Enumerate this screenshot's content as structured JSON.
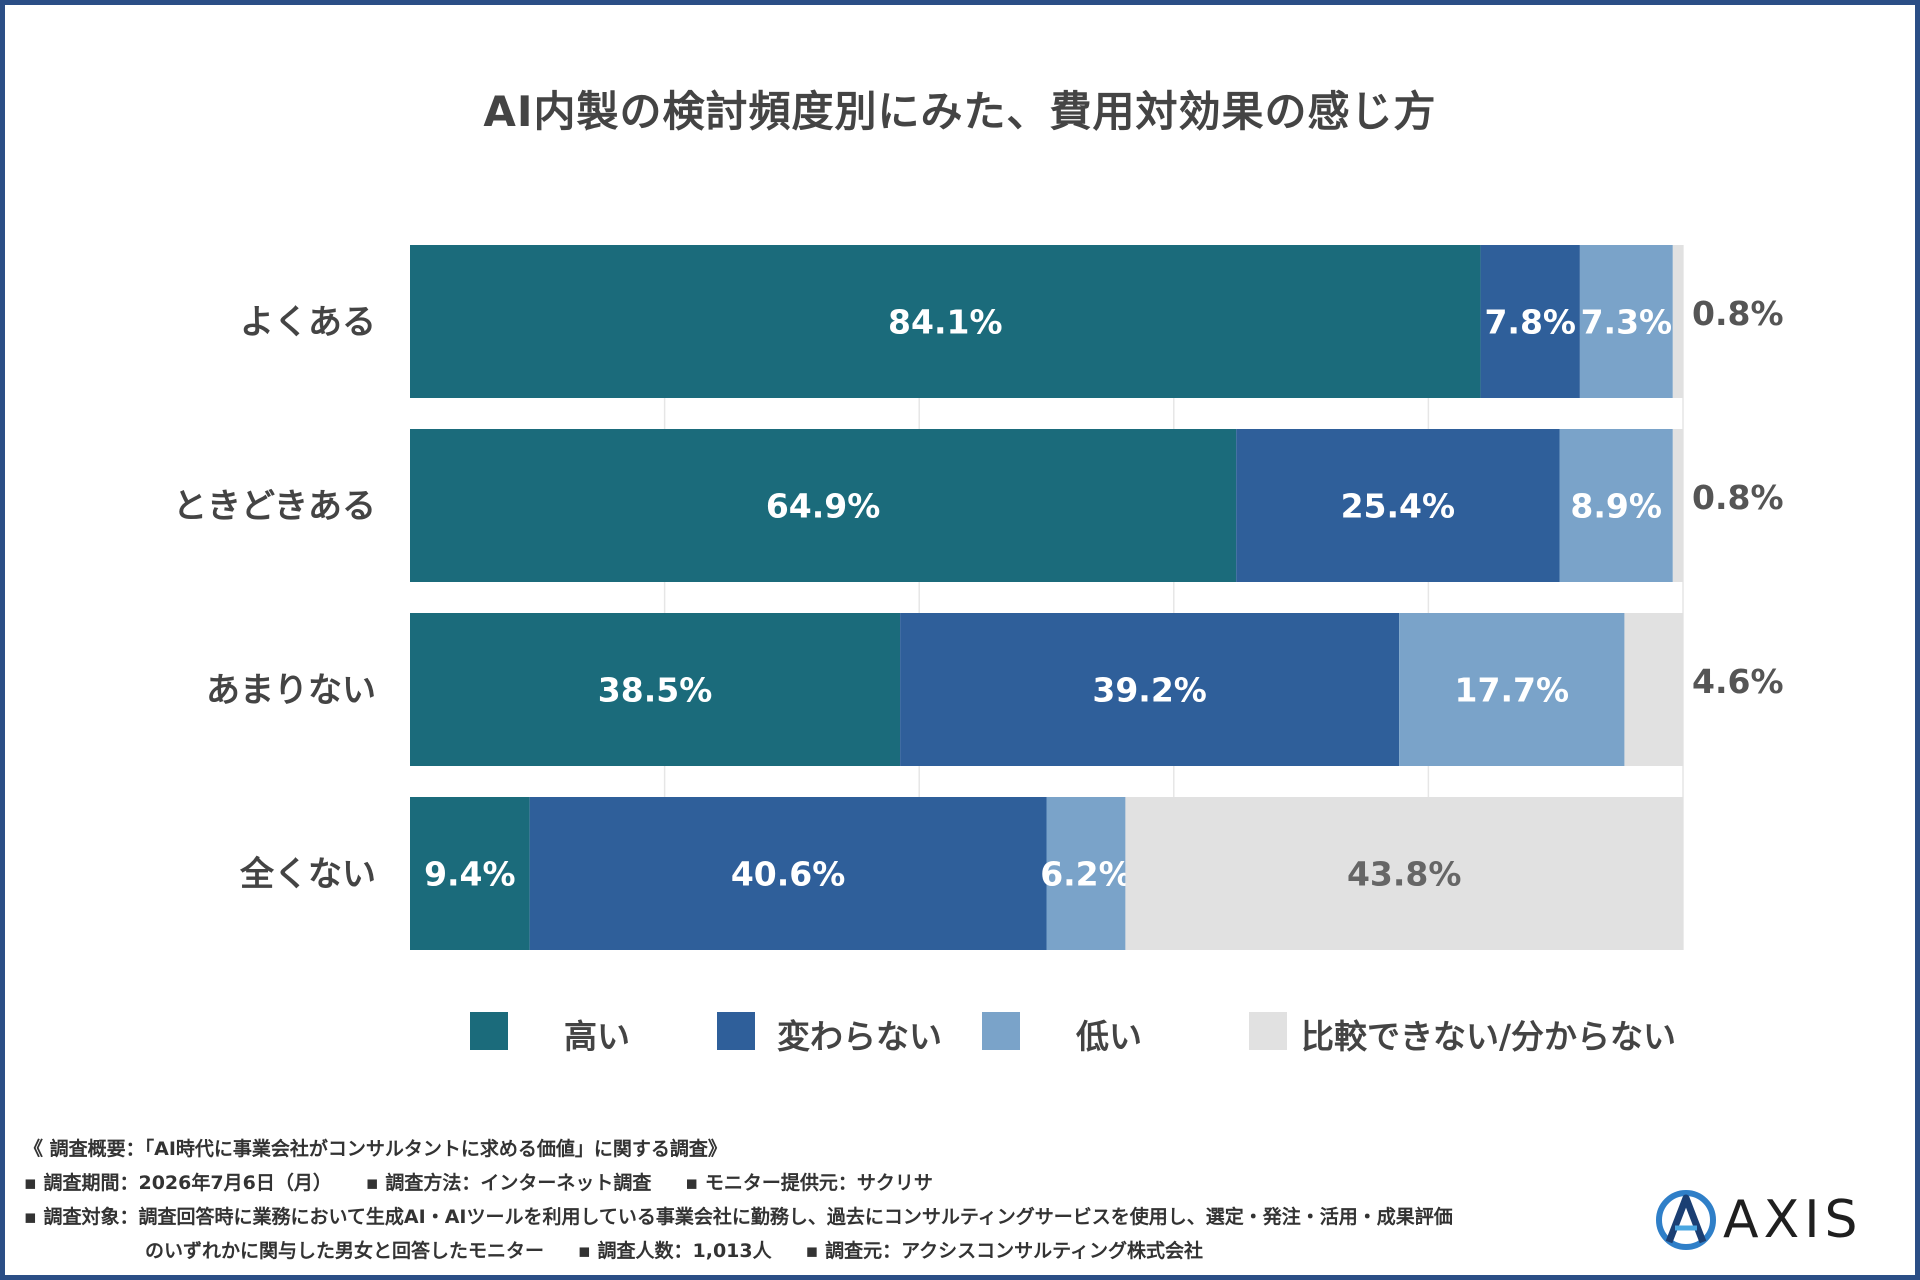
{
  "title": "AI内製の検討頻度別にみた、費用対効果の感じ方",
  "colors": {
    "high": "#1b6b7b",
    "same": "#2f5f9a",
    "low": "#7aa3c9",
    "na": "#e1e1e1",
    "frame": "#2b4e86",
    "grid": "#e6e6e6"
  },
  "chart_data": {
    "type": "bar",
    "orientation": "horizontal",
    "stacked": true,
    "title": "AI内製の検討頻度別にみた、費用対効果の感じ方",
    "categories": [
      "よくある",
      "ときどきある",
      "あまりない",
      "全くない"
    ],
    "series": [
      {
        "name": "高い",
        "values": [
          84.1,
          64.9,
          38.5,
          9.4
        ]
      },
      {
        "name": "変わらない",
        "values": [
          7.8,
          25.4,
          39.2,
          40.6
        ]
      },
      {
        "name": "低い",
        "values": [
          7.3,
          8.9,
          17.7,
          6.2
        ]
      },
      {
        "name": "比較できない/分からない",
        "values": [
          0.8,
          0.8,
          4.6,
          43.8
        ]
      }
    ],
    "value_labels": [
      [
        "84.1%",
        "7.8%",
        "7.3%",
        "0.8%"
      ],
      [
        "64.9%",
        "25.4%",
        "8.9%",
        "0.8%"
      ],
      [
        "38.5%",
        "39.2%",
        "17.7%",
        "4.6%"
      ],
      [
        "9.4%",
        "40.6%",
        "6.2%",
        "43.8%"
      ]
    ],
    "xlim": [
      0,
      100
    ],
    "grid": true,
    "legend_position": "bottom"
  },
  "legend": {
    "items": [
      {
        "label": "高い",
        "color": "#1b6b7b"
      },
      {
        "label": "変わらない",
        "color": "#2f5f9a"
      },
      {
        "label": "低い",
        "color": "#7aa3c9"
      },
      {
        "label": "比較できない/分からない",
        "color": "#e1e1e1"
      }
    ]
  },
  "notes": {
    "line1": "《 調査概要：「AI時代に事業会社がコンサルタントに求める価値」に関する調査》",
    "line2a": "▪ 調査期間：2026年7月6日（月）",
    "line2b": "▪ 調査方法：インターネット調査",
    "line2c": "▪ モニター提供元：サクリサ",
    "line3": "▪ 調査対象：調査回答時に業務において生成AI・AIツールを利用している事業会社に勤務し、過去にコンサルティングサービスを使用し、選定・発注・活用・成果評価",
    "line4a": "のいずれかに関与した男女と回答したモニター",
    "line4b": "▪ 調査人数：1,013人",
    "line4c": "▪ 調査元：アクシスコンサルティング株式会社"
  },
  "logo": {
    "text": "AXIS",
    "icon": "axis-logo-icon"
  }
}
